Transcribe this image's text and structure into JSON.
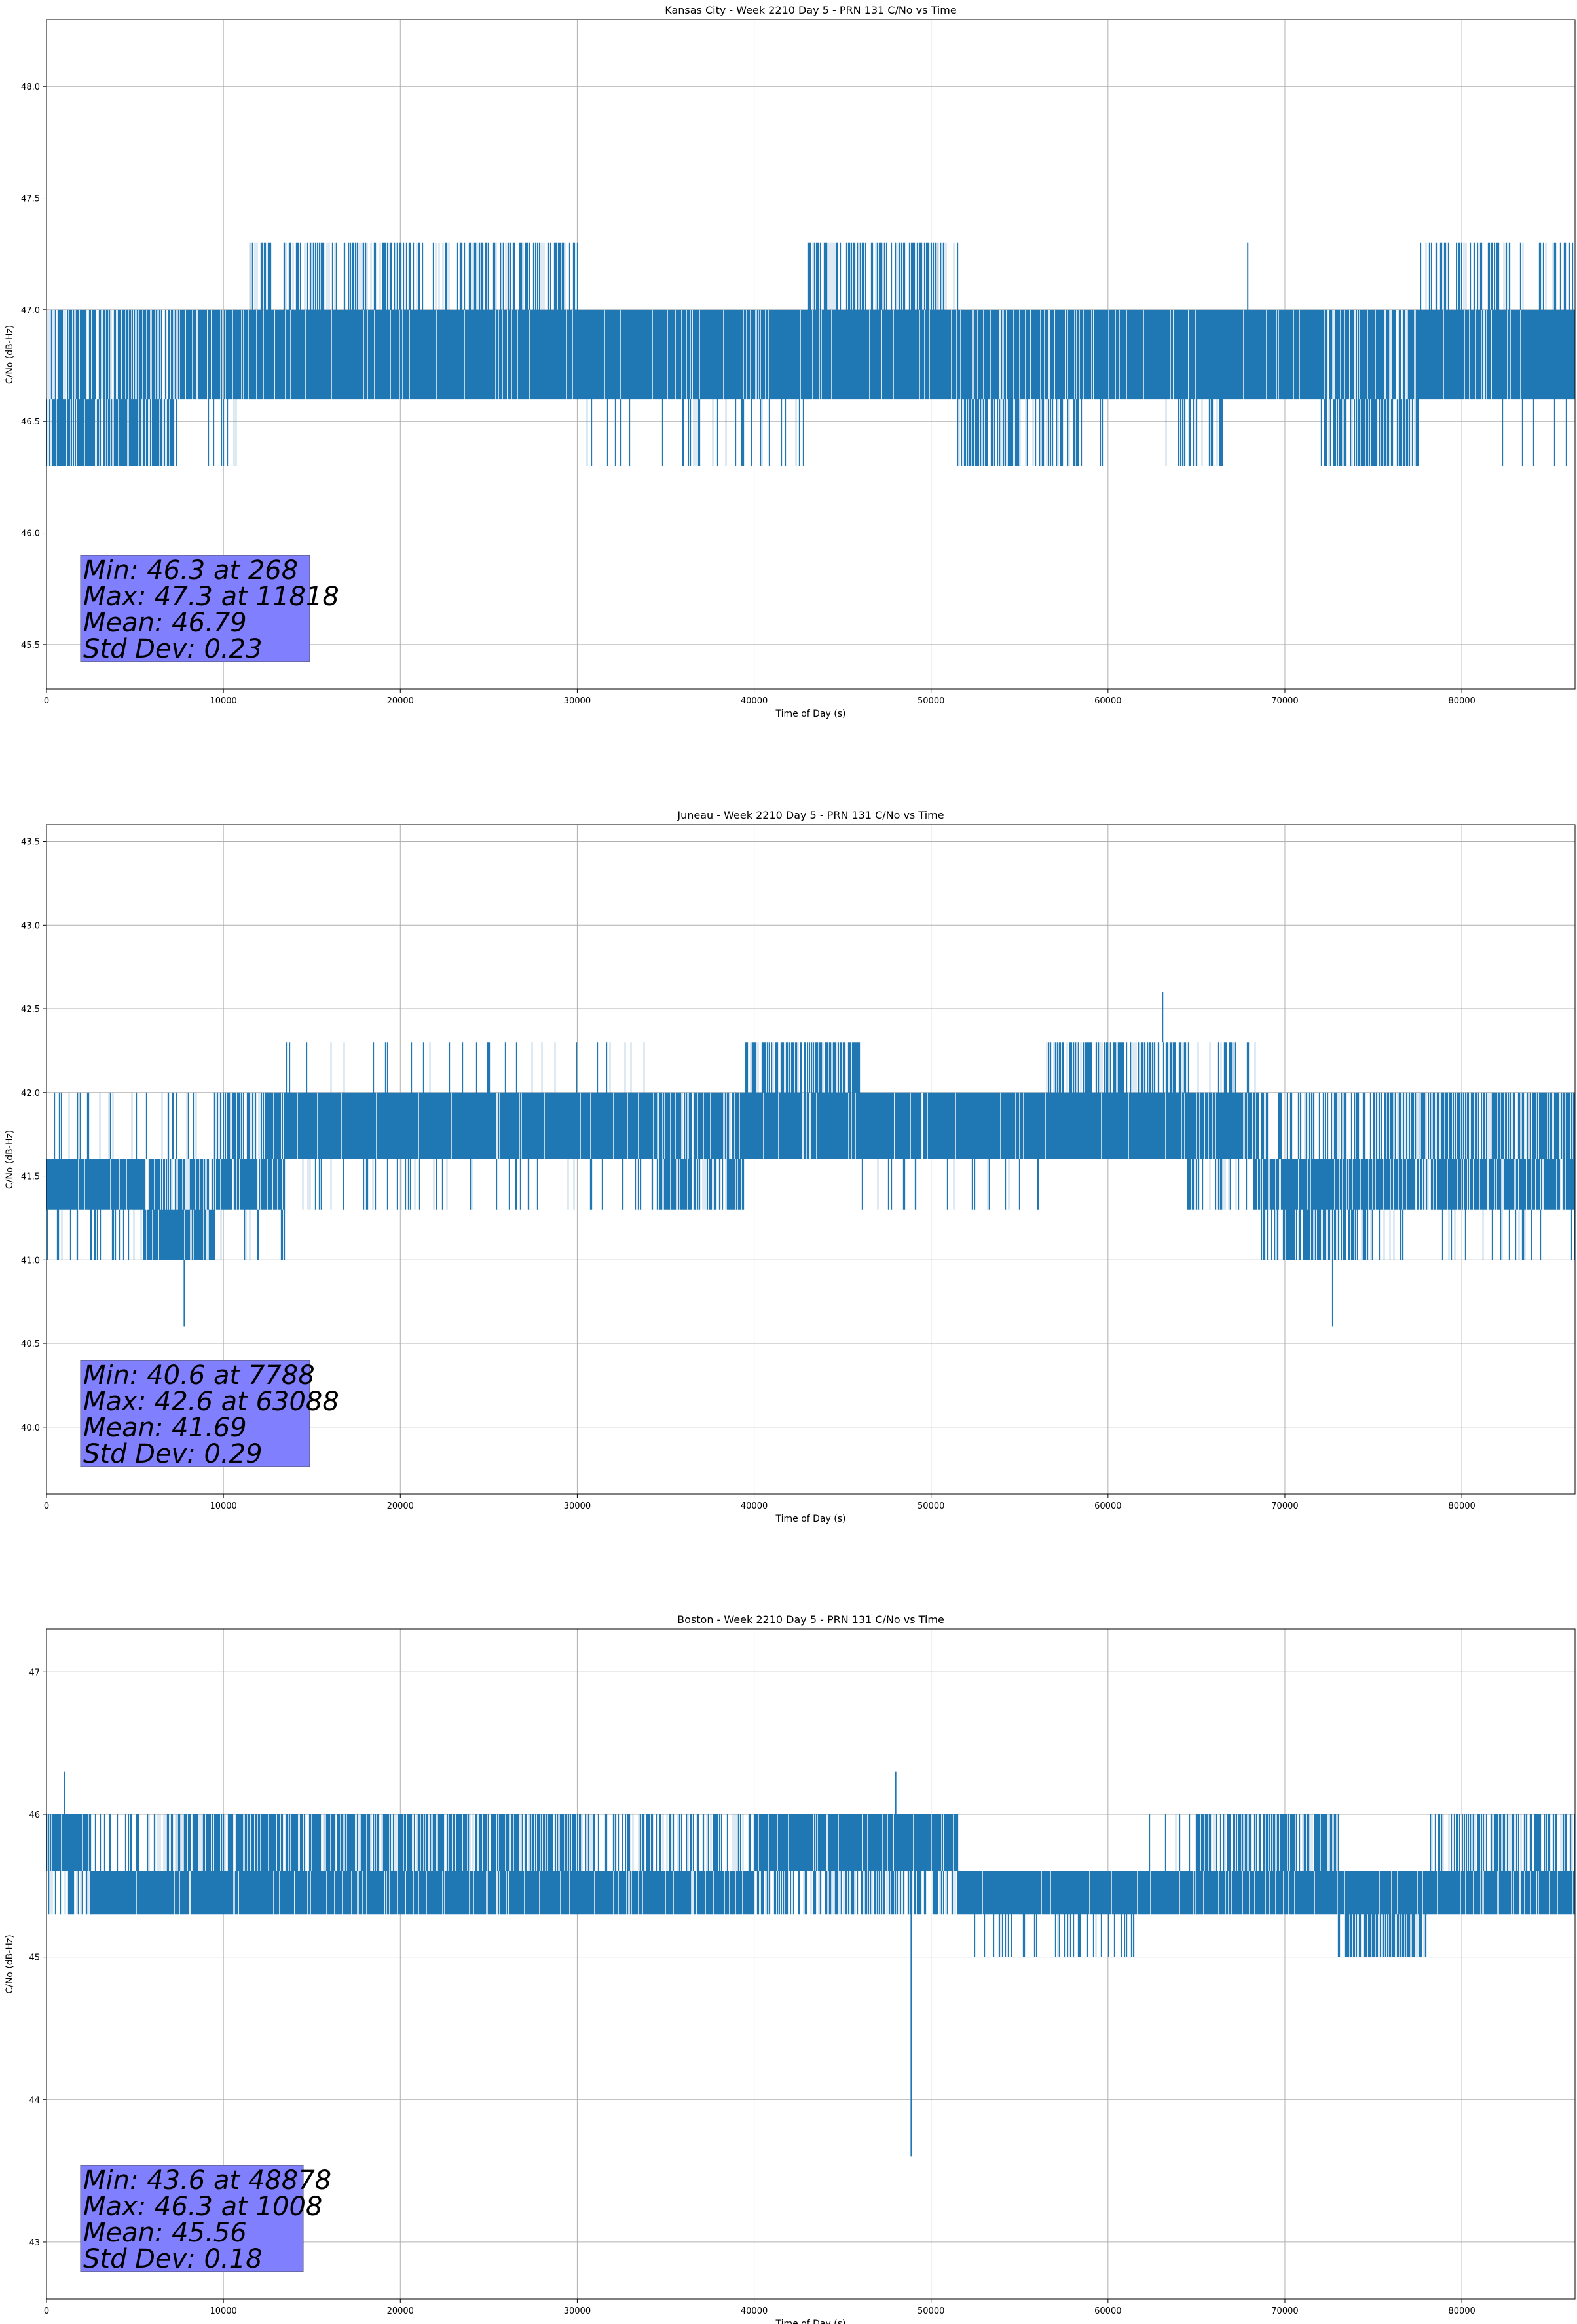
{
  "figure_title": "PRN 131 C/No vs Time",
  "colors": {
    "series": "#1f77b4",
    "grid": "#b0b0b0",
    "stats_box": "#8080ff"
  },
  "chart_data": [
    {
      "type": "line",
      "title": "Kansas City - Week 2210 Day 5 - PRN 131 C/No vs Time",
      "xlabel": "Time of Day (s)",
      "ylabel": "C/No (dB-Hz)",
      "xlim": [
        0,
        86400
      ],
      "ylim": [
        45.3,
        48.3
      ],
      "xticks": [
        0,
        10000,
        20000,
        30000,
        40000,
        50000,
        60000,
        70000,
        80000
      ],
      "yticks": [
        45.5,
        46.0,
        46.5,
        47.0,
        47.5,
        48.0
      ],
      "ytick_labels": [
        "45.5",
        "46.0",
        "46.5",
        "47.0",
        "47.5",
        "48.0"
      ],
      "grid": true,
      "series": [
        {
          "name": "C/No",
          "segments": [
            {
              "x": [
                0,
                7500
              ],
              "bands": [
                [
                  46.6,
                  47.0,
                  0.55
                ],
                [
                  46.3,
                  46.6,
                  0.65
                ],
                [
                  46.3,
                  47.0,
                  0.08
                ]
              ]
            },
            {
              "x": [
                7500,
                11500
              ],
              "bands": [
                [
                  46.6,
                  47.0,
                  0.75
                ],
                [
                  46.3,
                  46.6,
                  0.04
                ]
              ]
            },
            {
              "x": [
                11500,
                30000
              ],
              "bands": [
                [
                  46.6,
                  47.0,
                  0.9
                ],
                [
                  47.0,
                  47.3,
                  0.35
                ]
              ]
            },
            {
              "x": [
                30000,
                36000
              ],
              "bands": [
                [
                  46.6,
                  47.0,
                  0.95
                ],
                [
                  46.3,
                  46.6,
                  0.03
                ]
              ]
            },
            {
              "x": [
                36000,
                43000
              ],
              "bands": [
                [
                  46.6,
                  47.0,
                  0.9
                ],
                [
                  46.3,
                  46.6,
                  0.12
                ]
              ]
            },
            {
              "x": [
                43000,
                51500
              ],
              "bands": [
                [
                  46.6,
                  47.0,
                  0.92
                ],
                [
                  47.0,
                  47.3,
                  0.4
                ]
              ]
            },
            {
              "x": [
                51500,
                58500
              ],
              "bands": [
                [
                  46.6,
                  47.0,
                  0.85
                ],
                [
                  46.3,
                  46.6,
                  0.3
                ]
              ]
            },
            {
              "x": [
                58500,
                64000
              ],
              "bands": [
                [
                  46.6,
                  47.0,
                  0.95
                ],
                [
                  46.3,
                  46.6,
                  0.03
                ]
              ]
            },
            {
              "x": [
                64000,
                66500
              ],
              "bands": [
                [
                  46.6,
                  47.0,
                  0.9
                ],
                [
                  46.3,
                  46.6,
                  0.25
                ]
              ]
            },
            {
              "x": [
                66500,
                72000
              ],
              "bands": [
                [
                  46.6,
                  47.0,
                  0.95
                ]
              ]
            },
            {
              "x": [
                72000,
                77500
              ],
              "bands": [
                [
                  46.6,
                  47.0,
                  0.75
                ],
                [
                  46.3,
                  46.6,
                  0.5
                ]
              ]
            },
            {
              "x": [
                77500,
                86400
              ],
              "bands": [
                [
                  46.6,
                  47.0,
                  0.92
                ],
                [
                  47.0,
                  47.3,
                  0.2
                ],
                [
                  46.3,
                  46.6,
                  0.03
                ]
              ]
            }
          ],
          "spikes": [
            [
              67900,
              47.0,
              47.3
            ]
          ]
        }
      ],
      "stats": {
        "min": "Min: 46.3 at 268",
        "max": "Max: 47.3 at 11818",
        "mean": "Mean: 46.79",
        "std": "Std Dev: 0.23"
      }
    },
    {
      "type": "line",
      "title": "Juneau - Week 2210 Day 5 - PRN 131 C/No vs Time",
      "xlabel": "Time of Day (s)",
      "ylabel": "C/No (dB-Hz)",
      "xlim": [
        0,
        86400
      ],
      "ylim": [
        39.6,
        43.6
      ],
      "xticks": [
        0,
        10000,
        20000,
        30000,
        40000,
        50000,
        60000,
        70000,
        80000
      ],
      "yticks": [
        40.0,
        40.5,
        41.0,
        41.5,
        42.0,
        42.5,
        43.0,
        43.5
      ],
      "ytick_labels": [
        "40.0",
        "40.5",
        "41.0",
        "41.5",
        "42.0",
        "42.5",
        "43.0",
        "43.5"
      ],
      "grid": true,
      "series": [
        {
          "name": "C/No",
          "segments": [
            {
              "x": [
                0,
                5500
              ],
              "bands": [
                [
                  41.3,
                  41.6,
                  0.95
                ],
                [
                  41.0,
                  41.3,
                  0.2
                ],
                [
                  41.6,
                  42.0,
                  0.1
                ]
              ]
            },
            {
              "x": [
                5500,
                9500
              ],
              "bands": [
                [
                  41.0,
                  41.3,
                  0.8
                ],
                [
                  41.3,
                  41.6,
                  0.6
                ],
                [
                  41.6,
                  42.0,
                  0.1
                ]
              ]
            },
            {
              "x": [
                9500,
                13500
              ],
              "bands": [
                [
                  41.3,
                  41.6,
                  0.8
                ],
                [
                  41.6,
                  42.0,
                  0.5
                ],
                [
                  41.0,
                  41.3,
                  0.1
                ]
              ]
            },
            {
              "x": [
                13500,
                34500
              ],
              "bands": [
                [
                  41.6,
                  42.0,
                  0.95
                ],
                [
                  42.0,
                  42.3,
                  0.05
                ],
                [
                  41.3,
                  41.6,
                  0.1
                ]
              ]
            },
            {
              "x": [
                34500,
                39500
              ],
              "bands": [
                [
                  41.6,
                  42.0,
                  0.7
                ],
                [
                  41.3,
                  41.6,
                  0.6
                ]
              ]
            },
            {
              "x": [
                39500,
                46000
              ],
              "bands": [
                [
                  41.6,
                  42.0,
                  0.95
                ],
                [
                  42.0,
                  42.3,
                  0.5
                ]
              ]
            },
            {
              "x": [
                46000,
                56500
              ],
              "bands": [
                [
                  41.6,
                  42.0,
                  0.95
                ],
                [
                  41.3,
                  41.6,
                  0.05
                ]
              ]
            },
            {
              "x": [
                56500,
                64500
              ],
              "bands": [
                [
                  41.6,
                  42.0,
                  0.95
                ],
                [
                  42.0,
                  42.3,
                  0.45
                ]
              ]
            },
            {
              "x": [
                64500,
                68500
              ],
              "bands": [
                [
                  41.6,
                  42.0,
                  0.8
                ],
                [
                  42.0,
                  42.3,
                  0.15
                ],
                [
                  41.3,
                  41.6,
                  0.2
                ]
              ]
            },
            {
              "x": [
                68500,
                75000
              ],
              "bands": [
                [
                  41.3,
                  41.6,
                  0.85
                ],
                [
                  41.0,
                  41.3,
                  0.4
                ],
                [
                  41.6,
                  42.0,
                  0.25
                ]
              ]
            },
            {
              "x": [
                75000,
                86400
              ],
              "bands": [
                [
                  41.3,
                  41.6,
                  0.75
                ],
                [
                  41.6,
                  42.0,
                  0.55
                ],
                [
                  41.0,
                  41.3,
                  0.1
                ]
              ]
            }
          ],
          "spikes": [
            [
              7788,
              41.0,
              40.6
            ],
            [
              63088,
              42.3,
              42.6
            ],
            [
              72700,
              41.0,
              40.6
            ]
          ]
        }
      ],
      "stats": {
        "min": "Min: 40.6 at 7788",
        "max": "Max: 42.6 at 63088",
        "mean": "Mean: 41.69",
        "std": "Std Dev: 0.29"
      }
    },
    {
      "type": "line",
      "title": "Boston - Week 2210 Day 5 - PRN 131 C/No vs Time",
      "xlabel": "Time of Day (s)",
      "ylabel": "C/No (dB-Hz)",
      "xlim": [
        0,
        86400
      ],
      "ylim": [
        42.6,
        47.3
      ],
      "xticks": [
        0,
        10000,
        20000,
        30000,
        40000,
        50000,
        60000,
        70000,
        80000
      ],
      "yticks": [
        43,
        44,
        45,
        46,
        47
      ],
      "ytick_labels": [
        "43",
        "44",
        "45",
        "46",
        "47"
      ],
      "grid": true,
      "series": [
        {
          "name": "C/No",
          "segments": [
            {
              "x": [
                0,
                2500
              ],
              "bands": [
                [
                  45.6,
                  46.0,
                  0.9
                ],
                [
                  45.3,
                  45.6,
                  0.3
                ]
              ]
            },
            {
              "x": [
                2500,
                7000
              ],
              "bands": [
                [
                  45.3,
                  45.6,
                  0.95
                ],
                [
                  45.6,
                  46.0,
                  0.15
                ]
              ]
            },
            {
              "x": [
                7000,
                30000
              ],
              "bands": [
                [
                  45.3,
                  45.6,
                  0.9
                ],
                [
                  45.6,
                  46.0,
                  0.6
                ]
              ]
            },
            {
              "x": [
                30000,
                40000
              ],
              "bands": [
                [
                  45.3,
                  45.6,
                  0.9
                ],
                [
                  45.6,
                  46.0,
                  0.3
                ]
              ]
            },
            {
              "x": [
                40000,
                51500
              ],
              "bands": [
                [
                  45.6,
                  46.0,
                  0.9
                ],
                [
                  45.3,
                  45.6,
                  0.45
                ]
              ]
            },
            {
              "x": [
                51500,
                62000
              ],
              "bands": [
                [
                  45.3,
                  45.6,
                  0.95
                ],
                [
                  45.0,
                  45.3,
                  0.15
                ]
              ]
            },
            {
              "x": [
                62000,
                65000
              ],
              "bands": [
                [
                  45.3,
                  45.6,
                  0.95
                ],
                [
                  45.6,
                  46.0,
                  0.05
                ]
              ]
            },
            {
              "x": [
                65000,
                73000
              ],
              "bands": [
                [
                  45.3,
                  45.6,
                  0.9
                ],
                [
                  45.6,
                  46.0,
                  0.55
                ]
              ]
            },
            {
              "x": [
                73000,
                78000
              ],
              "bands": [
                [
                  45.3,
                  45.6,
                  0.95
                ],
                [
                  45.0,
                  45.3,
                  0.55
                ]
              ]
            },
            {
              "x": [
                78000,
                86400
              ],
              "bands": [
                [
                  45.3,
                  45.6,
                  0.9
                ],
                [
                  45.6,
                  46.0,
                  0.35
                ]
              ]
            }
          ],
          "spikes": [
            [
              1008,
              46.0,
              46.3
            ],
            [
              48000,
              46.0,
              46.3
            ],
            [
              48878,
              45.6,
              43.6
            ]
          ]
        }
      ],
      "stats": {
        "min": "Min: 43.6 at 48878",
        "max": "Max: 46.3 at 1008",
        "mean": "Mean: 45.56",
        "std": "Std Dev: 0.18"
      }
    }
  ]
}
